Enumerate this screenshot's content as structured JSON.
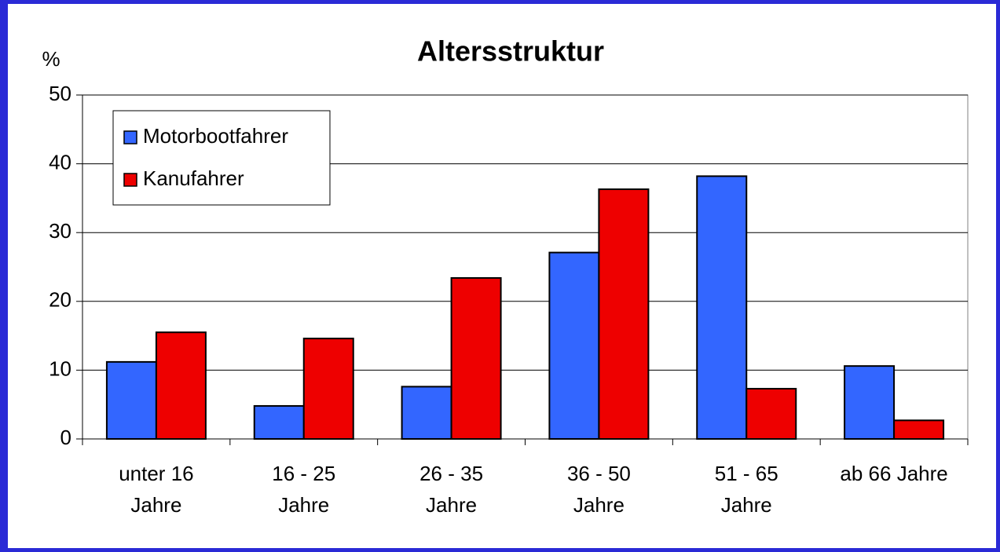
{
  "chart_data": {
    "type": "bar",
    "title": "Altersstruktur",
    "y_label": "%",
    "categories": [
      [
        "unter 16",
        "Jahre"
      ],
      [
        "16 - 25",
        "Jahre"
      ],
      [
        "26 - 35",
        "Jahre"
      ],
      [
        "36 - 50",
        "Jahre"
      ],
      [
        "51 - 65",
        "Jahre"
      ],
      [
        "ab 66 Jahre"
      ]
    ],
    "series": [
      {
        "name": "Motorbootfahrer",
        "color": "#3366ff",
        "values": [
          11.2,
          4.8,
          7.6,
          27.1,
          38.2,
          10.6
        ]
      },
      {
        "name": "Kanufahrer",
        "color": "#ee0000",
        "values": [
          15.5,
          14.6,
          23.4,
          36.3,
          7.3,
          2.7
        ]
      }
    ],
    "ylim": [
      0,
      50
    ],
    "yticks": [
      0,
      10,
      20,
      30,
      40,
      50
    ],
    "grid": true,
    "legend": "top-left"
  }
}
